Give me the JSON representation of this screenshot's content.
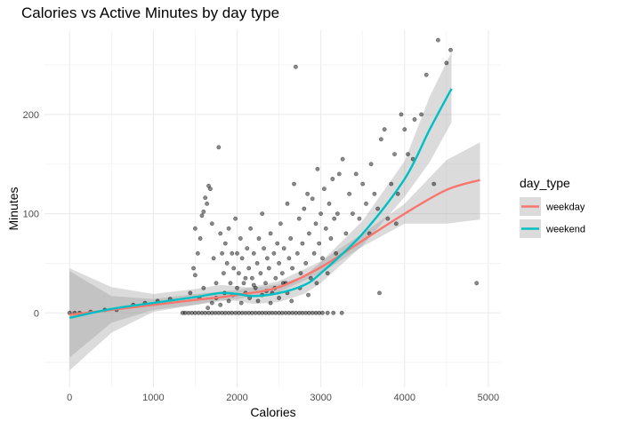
{
  "chart_data": {
    "type": "scatter",
    "title": "Calories vs Active Minutes by day type",
    "xlabel": "Calories",
    "ylabel": "Minutes",
    "xlim": [
      -300,
      5150
    ],
    "ylim": [
      -75,
      285
    ],
    "x_ticks": [
      0,
      1000,
      2000,
      3000,
      4000,
      5000
    ],
    "y_ticks": [
      0,
      100,
      200
    ],
    "x_tick_labels": [
      "0",
      "1000",
      "2000",
      "3000",
      "4000",
      "5000"
    ],
    "y_tick_labels": [
      "0",
      "100",
      "200"
    ],
    "grid": true,
    "legend_position": "right",
    "legend_title": "day_type",
    "point_color": "#000000",
    "ribbon_color": "#999999",
    "series": [
      {
        "name": "weekday",
        "color": "#F8766D",
        "smooth_x": [
          0,
          500,
          1000,
          1500,
          2000,
          2500,
          3000,
          3500,
          4000,
          4500,
          4900
        ],
        "smooth_y": [
          -2,
          3,
          8,
          13,
          18,
          26,
          46,
          73,
          100,
          124,
          134
        ],
        "band_lower": [
          -45,
          -10,
          3,
          8,
          14,
          21,
          40,
          67,
          90,
          90,
          94
        ],
        "band_upper": [
          42,
          17,
          14,
          19,
          23,
          32,
          52,
          80,
          110,
          154,
          172
        ]
      },
      {
        "name": "weekend",
        "color": "#00BFC4",
        "smooth_x": [
          0,
          500,
          1000,
          1500,
          1800,
          2000,
          2200,
          2500,
          2800,
          3000,
          3500,
          4000,
          4300,
          4560
        ],
        "smooth_y": [
          -5,
          4,
          10,
          16,
          20,
          19,
          17,
          20,
          28,
          40,
          80,
          135,
          185,
          226
        ],
        "band_lower": [
          -58,
          -20,
          1,
          8,
          13,
          12,
          9,
          11,
          19,
          30,
          68,
          117,
          152,
          192
        ],
        "band_upper": [
          45,
          26,
          19,
          24,
          28,
          27,
          25,
          29,
          37,
          51,
          93,
          153,
          218,
          263
        ]
      }
    ],
    "points": [
      [
        0,
        0
      ],
      [
        60,
        0
      ],
      [
        120,
        0
      ],
      [
        250,
        1
      ],
      [
        420,
        3
      ],
      [
        560,
        3
      ],
      [
        760,
        8
      ],
      [
        900,
        10
      ],
      [
        1050,
        12
      ],
      [
        1200,
        14
      ],
      [
        1350,
        0
      ],
      [
        1380,
        0
      ],
      [
        1420,
        0
      ],
      [
        1460,
        0
      ],
      [
        1500,
        0
      ],
      [
        1540,
        0
      ],
      [
        1580,
        0
      ],
      [
        1620,
        0
      ],
      [
        1660,
        0
      ],
      [
        1700,
        0
      ],
      [
        1740,
        0
      ],
      [
        1780,
        0
      ],
      [
        1820,
        0
      ],
      [
        1860,
        0
      ],
      [
        1900,
        0
      ],
      [
        1940,
        0
      ],
      [
        1980,
        0
      ],
      [
        2020,
        0
      ],
      [
        2060,
        0
      ],
      [
        2100,
        0
      ],
      [
        2140,
        0
      ],
      [
        2180,
        0
      ],
      [
        2220,
        0
      ],
      [
        2260,
        0
      ],
      [
        2300,
        0
      ],
      [
        2340,
        0
      ],
      [
        2380,
        0
      ],
      [
        2420,
        0
      ],
      [
        2460,
        0
      ],
      [
        2500,
        0
      ],
      [
        2540,
        0
      ],
      [
        2580,
        0
      ],
      [
        2620,
        0
      ],
      [
        2660,
        0
      ],
      [
        2700,
        0
      ],
      [
        2740,
        0
      ],
      [
        2780,
        0
      ],
      [
        2820,
        0
      ],
      [
        2860,
        0
      ],
      [
        2900,
        0
      ],
      [
        2940,
        0
      ],
      [
        2980,
        0
      ],
      [
        3020,
        0
      ],
      [
        3080,
        0
      ],
      [
        3150,
        0
      ],
      [
        3250,
        0
      ],
      [
        1440,
        20
      ],
      [
        1480,
        45
      ],
      [
        1500,
        38
      ],
      [
        1530,
        60
      ],
      [
        1560,
        75
      ],
      [
        1580,
        98
      ],
      [
        1600,
        102
      ],
      [
        1620,
        116
      ],
      [
        1640,
        110
      ],
      [
        1660,
        128
      ],
      [
        1680,
        125
      ],
      [
        1700,
        90
      ],
      [
        1720,
        55
      ],
      [
        1750,
        30
      ],
      [
        1780,
        167
      ],
      [
        1800,
        80
      ],
      [
        1820,
        60
      ],
      [
        1840,
        40
      ],
      [
        1860,
        70
      ],
      [
        1880,
        50
      ],
      [
        1900,
        85
      ],
      [
        1920,
        30
      ],
      [
        1940,
        60
      ],
      [
        1960,
        45
      ],
      [
        1980,
        95
      ],
      [
        2000,
        60
      ],
      [
        2020,
        40
      ],
      [
        2040,
        75
      ],
      [
        2060,
        55
      ],
      [
        2080,
        30
      ],
      [
        2100,
        20
      ],
      [
        2120,
        65
      ],
      [
        2140,
        45
      ],
      [
        2160,
        85
      ],
      [
        2180,
        35
      ],
      [
        2200,
        60
      ],
      [
        2220,
        25
      ],
      [
        2240,
        50
      ],
      [
        2260,
        75
      ],
      [
        2280,
        40
      ],
      [
        2300,
        100
      ],
      [
        2320,
        65
      ],
      [
        2340,
        30
      ],
      [
        2360,
        55
      ],
      [
        2380,
        45
      ],
      [
        2400,
        80
      ],
      [
        2420,
        20
      ],
      [
        2440,
        60
      ],
      [
        2460,
        35
      ],
      [
        2480,
        70
      ],
      [
        2500,
        50
      ],
      [
        2520,
        90
      ],
      [
        2540,
        40
      ],
      [
        2560,
        65
      ],
      [
        2580,
        30
      ],
      [
        2600,
        110
      ],
      [
        2620,
        55
      ],
      [
        2640,
        75
      ],
      [
        2660,
        45
      ],
      [
        2680,
        130
      ],
      [
        2700,
        248
      ],
      [
        2720,
        60
      ],
      [
        2740,
        95
      ],
      [
        2760,
        40
      ],
      [
        2780,
        70
      ],
      [
        2800,
        105
      ],
      [
        2820,
        50
      ],
      [
        2840,
        120
      ],
      [
        2860,
        80
      ],
      [
        2880,
        35
      ],
      [
        2900,
        115
      ],
      [
        2920,
        60
      ],
      [
        2940,
        90
      ],
      [
        2960,
        145
      ],
      [
        2980,
        70
      ],
      [
        3000,
        100
      ],
      [
        3020,
        55
      ],
      [
        3040,
        125
      ],
      [
        3060,
        85
      ],
      [
        3080,
        40
      ],
      [
        3100,
        110
      ],
      [
        3120,
        75
      ],
      [
        3140,
        135
      ],
      [
        3160,
        95
      ],
      [
        3180,
        60
      ],
      [
        3200,
        100
      ],
      [
        3220,
        140
      ],
      [
        3260,
        155
      ],
      [
        3300,
        80
      ],
      [
        3340,
        120
      ],
      [
        3380,
        100
      ],
      [
        3420,
        140
      ],
      [
        3460,
        95
      ],
      [
        3500,
        130
      ],
      [
        3540,
        110
      ],
      [
        3580,
        80
      ],
      [
        3600,
        150
      ],
      [
        3640,
        120
      ],
      [
        3680,
        105
      ],
      [
        3700,
        20
      ],
      [
        3720,
        175
      ],
      [
        3760,
        185
      ],
      [
        3800,
        95
      ],
      [
        3840,
        130
      ],
      [
        3880,
        160
      ],
      [
        3900,
        90
      ],
      [
        3920,
        120
      ],
      [
        3960,
        200
      ],
      [
        4000,
        185
      ],
      [
        4040,
        160
      ],
      [
        4100,
        155
      ],
      [
        4120,
        195
      ],
      [
        4200,
        200
      ],
      [
        4260,
        240
      ],
      [
        4350,
        130
      ],
      [
        4400,
        275
      ],
      [
        4500,
        252
      ],
      [
        4550,
        265
      ],
      [
        4860,
        30
      ],
      [
        1500,
        85
      ],
      [
        1550,
        15
      ],
      [
        1600,
        25
      ],
      [
        1650,
        5
      ],
      [
        1700,
        10
      ],
      [
        1750,
        15
      ],
      [
        1800,
        8
      ],
      [
        1850,
        20
      ],
      [
        1900,
        12
      ],
      [
        1950,
        18
      ],
      [
        2000,
        25
      ],
      [
        2050,
        10
      ],
      [
        2100,
        35
      ],
      [
        2150,
        15
      ],
      [
        2200,
        28
      ],
      [
        2250,
        12
      ],
      [
        2300,
        18
      ],
      [
        2350,
        22
      ],
      [
        2400,
        10
      ],
      [
        2450,
        25
      ],
      [
        2500,
        15
      ],
      [
        2550,
        30
      ],
      [
        2600,
        20
      ],
      [
        2650,
        12
      ],
      [
        2750,
        25
      ],
      [
        2850,
        18
      ],
      [
        2950,
        30
      ]
    ]
  }
}
